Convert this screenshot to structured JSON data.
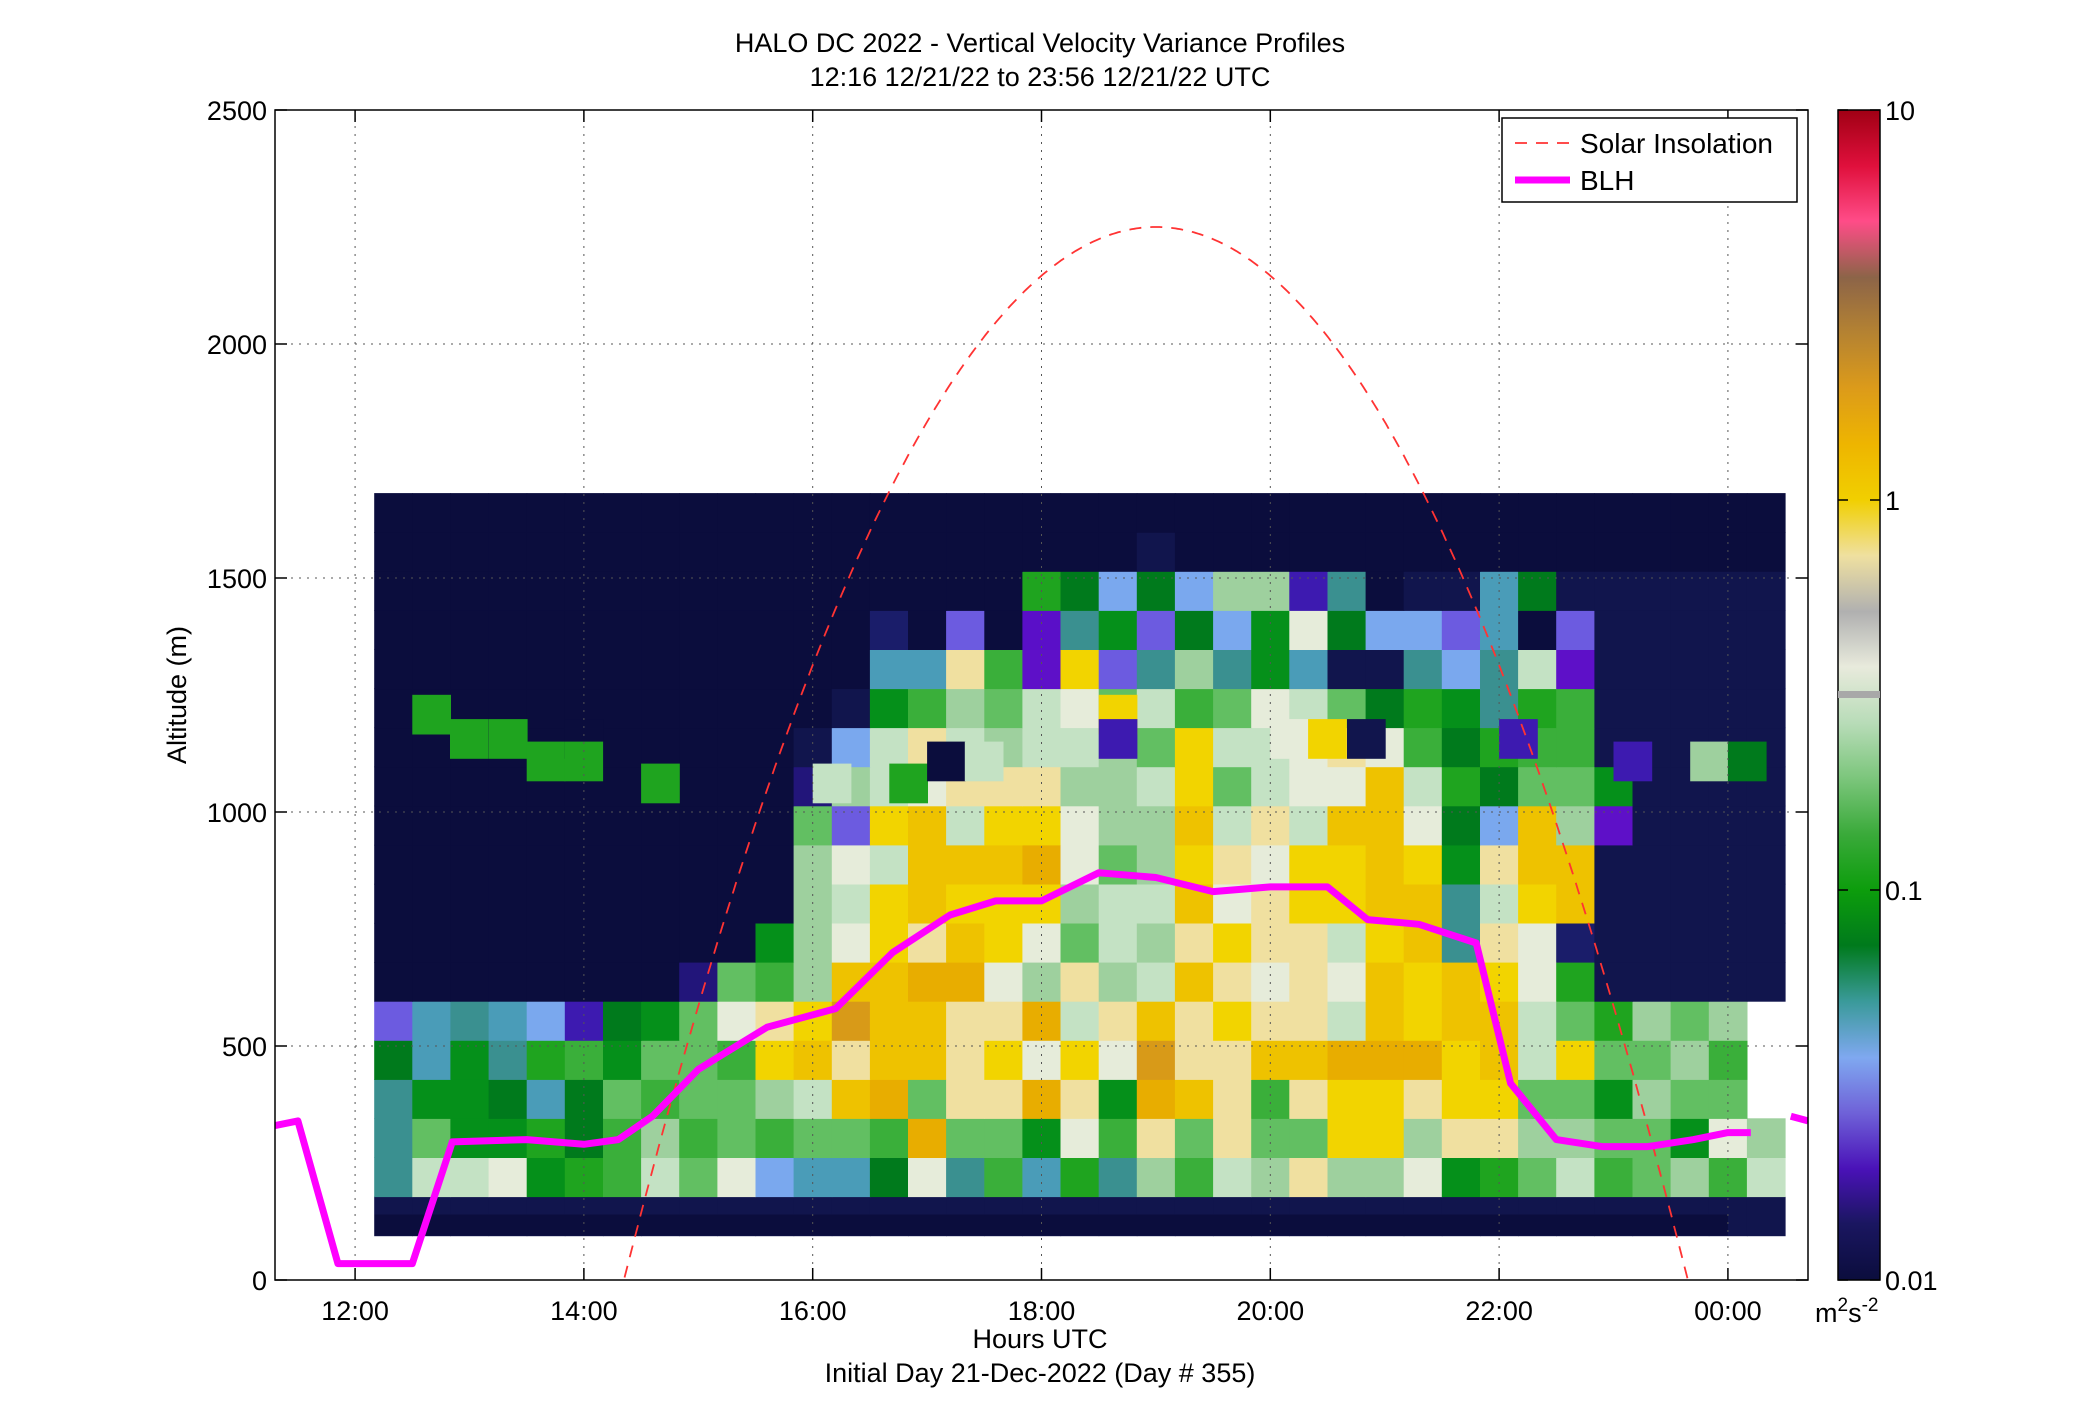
{
  "chart_data": {
    "type": "heatmap",
    "title": "HALO DC 2022 - Vertical Velocity Variance Profiles",
    "subtitle": "12:16 12/21/22 to 23:56 12/21/22  UTC",
    "xlabel": "Hours UTC",
    "xlabel2": "Initial Day 21-Dec-2022 (Day # 355)",
    "ylabel": "Altitude (m)",
    "x_range_hours": [
      11.3,
      24.7
    ],
    "ylim": [
      0,
      2500
    ],
    "x_ticks": [
      {
        "value": 12,
        "label": "12:00"
      },
      {
        "value": 14,
        "label": "14:00"
      },
      {
        "value": 16,
        "label": "16:00"
      },
      {
        "value": 18,
        "label": "18:00"
      },
      {
        "value": 20,
        "label": "20:00"
      },
      {
        "value": 22,
        "label": "22:00"
      },
      {
        "value": 24,
        "label": "00:00"
      }
    ],
    "y_ticks": [
      0,
      500,
      1000,
      1500,
      2000,
      2500
    ],
    "grid": true,
    "legend_position": "top-right",
    "legend": [
      {
        "name": "Solar Insolation",
        "color": "#ff3333",
        "style": "dashed"
      },
      {
        "name": "BLH",
        "color": "#ff00ff",
        "style": "solid"
      }
    ],
    "colorbar": {
      "scale": "log",
      "min": 0.01,
      "max": 10,
      "tick_labels": [
        "0.01",
        "0.1",
        "1",
        "10"
      ],
      "unit_base": "m",
      "unit_exp1": "2",
      "unit_mid": "s",
      "unit_exp2": "-2",
      "colors": [
        "#0b0d3d",
        "#1a1660",
        "#4a12b8",
        "#6f62d8",
        "#7fa8f0",
        "#3a9a9a",
        "#007a1c",
        "#0c9d0c",
        "#3aaa3a",
        "#7cc67c",
        "#b8dcb8",
        "#e8eadc",
        "#b0b0b0",
        "#efe0a0",
        "#f1cf00",
        "#eeb500",
        "#dc9b1a",
        "#b48232",
        "#8c6448",
        "#ff4c88",
        "#e0103c",
        "#a00014"
      ]
    },
    "heatmap": {
      "time_start_hours": 12.167,
      "time_step_hours": 0.3333,
      "altitude_bottom_m": 95,
      "altitude_step_m": 83.5,
      "rows": [
        "bbbbbbbbbbbbbbbbbbbbbbbbbbbbbbbbbbbbb",
        "GNNOIJKNLOEFFHOGKFJGMKNMPMMOIJLNKLMKN",
        "GLIIJHKMKLKLLKSLLIOKPLPLLQQMPPMMLLIOM",
        "GIIHFHLKLLMNRSLPPSPISRPKPQQPQQLLIMLL",
        "HFIGJKILLKQRPRRPQOQOTPPRRSSSQRNQLLMK",
        "DFGFEBHILOPQTRRPPSNPRPQPPNRQRRNLJMLM",
        "aaaaaaaadLKMRRSSOMPMNRPOPORQRQOJbbbbb",
        "aaaaaaaaaaIMOQPRQOLNMPQPPNQRGPOnbbbbb",
        "aaaaaaaaaaaMNQRQQQMNNROPQQRRGNQRbbbbb",
        "aaaaaaaaaaaMONRRRSOLMQPOQQRQIPRRbbbbb",
        "aaaaaaaaaaaLDQRNQQOMMRNPNRROHERMCbbbb",
        "aaaaaaaaaaadMNOPPPMMNQLNOORNJHLLIbbbb",
        "aaaaaaaaaaabENPNMNNMLQNNOPOKHJKKbbbbb",
        "aaaaaaaaaaaabIKMLNOLNKLONLHJIGJKbbbbb",
        "aaaaaaaaaaaaaFFPKCQDGMGIFbbGEGNCbbbbb",
        "aaaaaaaaaaaaacaDafGIDHEIOHEEDFaDbbbbb",
        "aaaaaaaaaaaaaaaaaJHEHEMMBGabbFHbbbbbb",
        "aaaaaaaaaaaaaaaaaaaabaaaaaaaaaaaaaaaa",
        "aaaaaaaaaaaaaaaaaaaaaaaaaaaaaaaaaaaaa",
        "......................................",
        "......................................",
        "......................................"
      ]
    },
    "blh_series": {
      "name": "BLH",
      "x_hours": [
        11.3,
        11.5,
        11.85,
        12.5,
        12.85,
        13.5,
        14.0,
        14.3,
        14.6,
        15.0,
        15.6,
        16.2,
        16.7,
        17.2,
        17.6,
        18.0,
        18.5,
        19.0,
        19.5,
        20.0,
        20.5,
        20.85,
        21.3,
        21.8,
        22.1,
        22.5,
        22.9,
        23.3,
        23.7,
        24.0,
        24.2
      ],
      "y_m": [
        330,
        340,
        35,
        35,
        295,
        300,
        290,
        300,
        350,
        450,
        540,
        580,
        700,
        780,
        810,
        810,
        870,
        860,
        830,
        840,
        840,
        770,
        760,
        720,
        420,
        300,
        285,
        285,
        300,
        315,
        315
      ],
      "x_hours_tail": [
        24.55,
        24.7
      ],
      "y_m_tail": [
        350,
        340
      ]
    },
    "solar_series": {
      "name": "Solar Insolation",
      "peak_hour": 19.0,
      "peak_m": 2250,
      "zero_hours": [
        14.35,
        23.65
      ],
      "y_clip_m": [
        0,
        2500
      ]
    }
  }
}
